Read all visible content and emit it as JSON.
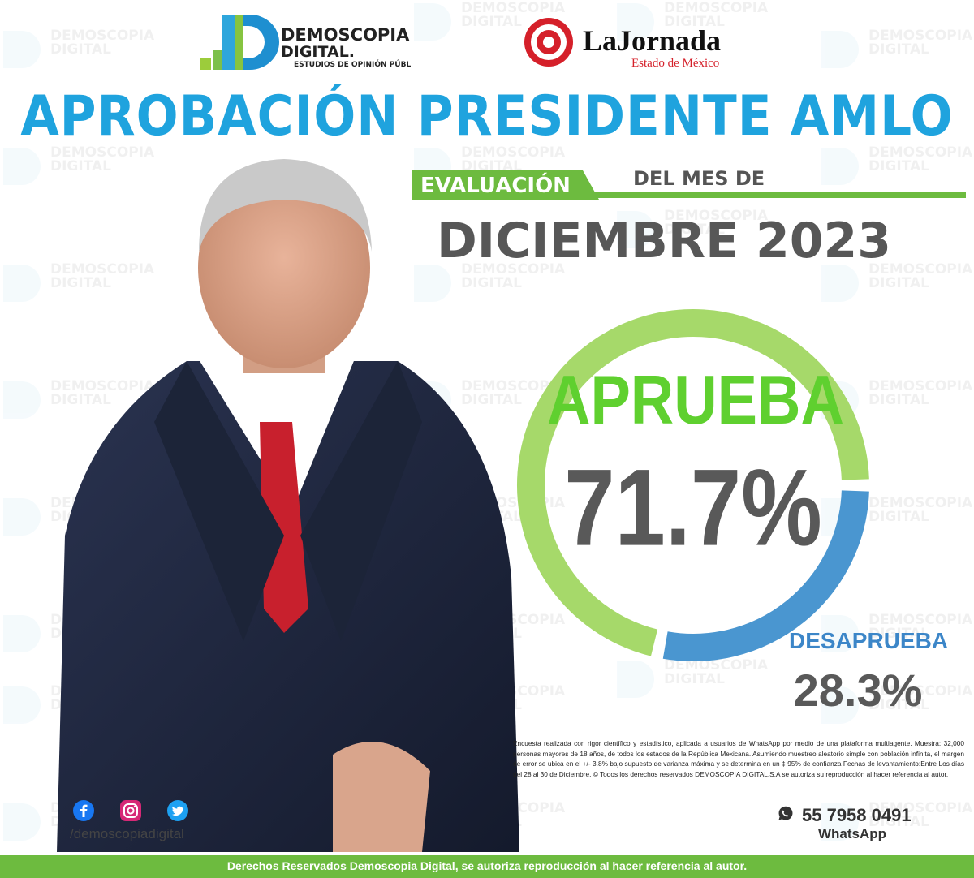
{
  "header": {
    "demoscopia_logo": {
      "line1": "DEMOSCOPIA",
      "line2": "DIGITAL.",
      "line3": "ESTUDIOS DE OPINIÓN PÚBLICA"
    },
    "jornada_logo": {
      "name": "LaJornada",
      "subtitle": "Estado de México"
    },
    "title": "APROBACIÓN PRESIDENTE AMLO",
    "eval_label": "EVALUACIÓN",
    "month_prefix": "DEL MES DE",
    "month": "DICIEMBRE 2023"
  },
  "watermark": {
    "line1": "DEMOSCOPIA",
    "line2": "DIGITAL"
  },
  "chart_data": {
    "type": "pie",
    "title": "APROBACIÓN PRESIDENTE AMLO",
    "categories": [
      "APRUEBA",
      "DESAPRUEBA"
    ],
    "values": [
      71.7,
      28.3
    ],
    "value_labels": [
      "71.7%",
      "28.3%"
    ],
    "colors": [
      "#a6d96a",
      "#4a96d0"
    ]
  },
  "results": {
    "aprueba_label": "APRUEBA",
    "aprueba_value": "71.7%",
    "desaprueba_label": "DESAPRUEBA",
    "desaprueba_value": "28.3%"
  },
  "disclaimer": "Encuesta realizada con rigor científico y estadístico, aplicada a usuarios de WhatsApp por medio de una plataforma multiagente. Muestra: 32,000 personas mayores de 18 años, de todos los estados de la República Mexicana. Asumiendo muestreo aleatorio simple con población infinita, el margen de error se ubica en el +/- 3.8% bajo supuesto de varianza máxima y se determina en un ‡ 95% de confianza Fechas de levantamiento:Entre Los días del 28 al 30 de Diciembre. © Todos los derechos reservados DEMOSCOPIA DIGITAL,S.A se autoriza su reproducción al hacer referencia al autor.",
  "social": {
    "handle": "/demoscopiadigital",
    "icons": [
      "facebook-icon",
      "instagram-icon",
      "twitter-icon"
    ]
  },
  "whatsapp": {
    "number": "55 7958 0491",
    "label": "WhatsApp"
  },
  "footer": {
    "text": "Derechos Reservados Demoscopia Digital, se autoriza reproducción al hacer referencia al autor."
  },
  "colors": {
    "title_blue": "#1fa3de",
    "approve_green": "#5fd02f",
    "disapprove_blue": "#3c86c8",
    "footer_green": "#6dbb3f"
  }
}
